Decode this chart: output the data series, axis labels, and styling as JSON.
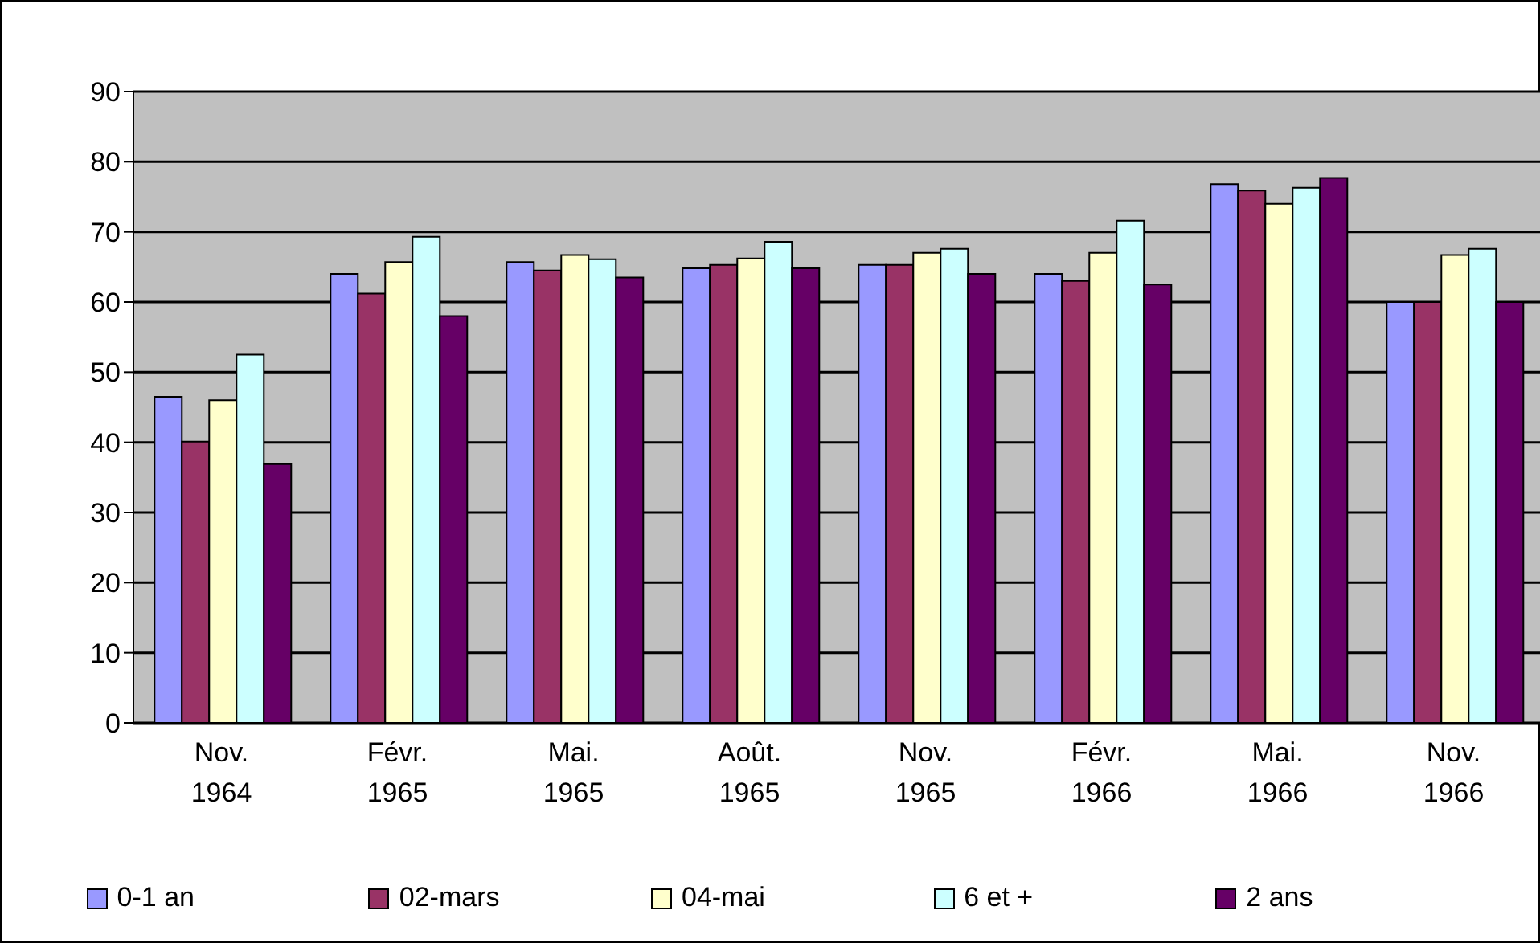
{
  "chart_data": {
    "type": "bar",
    "categories": [
      "Nov.\n1964",
      "Févr.\n1965",
      "Mai.\n1965",
      "Août.\n1965",
      "Nov.\n1965",
      "Févr.\n1966",
      "Mai.\n1966",
      "Nov.\n1966"
    ],
    "series": [
      {
        "name": "0-1 an",
        "color": "#9999ff",
        "values": [
          46.5,
          64,
          65.7,
          64.8,
          65.3,
          64,
          76.8,
          60
        ]
      },
      {
        "name": "02-mars",
        "color": "#993366",
        "values": [
          40.1,
          61.2,
          64.5,
          65.3,
          65.3,
          63,
          75.9,
          60
        ]
      },
      {
        "name": "04-mai",
        "color": "#ffffcc",
        "values": [
          46,
          65.7,
          66.7,
          66.2,
          67,
          67,
          74,
          66.7
        ]
      },
      {
        "name": "6 et +",
        "color": "#ccffff",
        "values": [
          52.5,
          69.3,
          66.1,
          68.6,
          67.6,
          71.6,
          76.3,
          67.6
        ]
      },
      {
        "name": "2 ans",
        "color": "#660066",
        "values": [
          36.9,
          58,
          63.5,
          64.8,
          64,
          62.5,
          77.7,
          60
        ]
      }
    ],
    "ylim": [
      0,
      90
    ],
    "yticks": [
      0,
      10,
      20,
      30,
      40,
      50,
      60,
      70,
      80,
      90
    ],
    "grid": "y",
    "legend": "bottom"
  }
}
